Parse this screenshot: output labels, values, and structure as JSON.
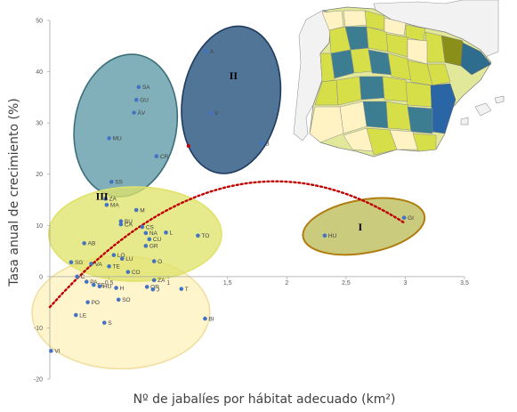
{
  "chart_data": {
    "type": "scatter",
    "xlabel": "Nº de jabalíes por hábitat adecuado (km²)",
    "ylabel": "Tasa anual de crecimiento (%)",
    "xlim": [
      0,
      3.5
    ],
    "ylim": [
      -20,
      50
    ],
    "x_ticks": [
      "0,5",
      "1",
      "1,5",
      "2",
      "2,5",
      "3",
      "3,5"
    ],
    "x_tick_values": [
      0.5,
      1,
      1.5,
      2,
      2.5,
      3,
      3.5
    ],
    "y_ticks": [
      "-20",
      "-10",
      "0",
      "10",
      "20",
      "30",
      "40",
      "50"
    ],
    "y_tick_values": [
      -20,
      -10,
      0,
      10,
      20,
      30,
      40,
      50
    ],
    "grid": false,
    "points": [
      {
        "label": "A",
        "x": 1.32,
        "y": 44.0
      },
      {
        "label": "V",
        "x": 1.36,
        "y": 32.0
      },
      {
        "label": "B",
        "x": 1.79,
        "y": 26.0
      },
      {
        "label": "SA",
        "x": 0.75,
        "y": 37.0
      },
      {
        "label": "GU",
        "x": 0.73,
        "y": 34.5
      },
      {
        "label": "ÁV",
        "x": 0.71,
        "y": 32.0
      },
      {
        "label": "MU",
        "x": 0.5,
        "y": 27.0
      },
      {
        "label": "CR",
        "x": 0.9,
        "y": 23.5
      },
      {
        "label": "SS",
        "x": 0.52,
        "y": 18.5
      },
      {
        "label": "ZA",
        "x": 0.47,
        "y": 15.2
      },
      {
        "label": "MA",
        "x": 0.48,
        "y": 14.0
      },
      {
        "label": "M",
        "x": 0.73,
        "y": 13.0
      },
      {
        "label": "BU",
        "x": 0.6,
        "y": 10.8
      },
      {
        "label": "CA",
        "x": 0.6,
        "y": 10.2
      },
      {
        "label": "CS",
        "x": 0.78,
        "y": 9.7
      },
      {
        "label": "NA",
        "x": 0.81,
        "y": 8.5
      },
      {
        "label": "L",
        "x": 0.98,
        "y": 8.6
      },
      {
        "label": "TO",
        "x": 1.25,
        "y": 8.0
      },
      {
        "label": "CU",
        "x": 0.84,
        "y": 7.3
      },
      {
        "label": "GR",
        "x": 0.81,
        "y": 6.0
      },
      {
        "label": "AB",
        "x": 0.29,
        "y": 6.5
      },
      {
        "label": "LO",
        "x": 0.54,
        "y": 4.2
      },
      {
        "label": "LU",
        "x": 0.61,
        "y": 3.5
      },
      {
        "label": "O",
        "x": 0.88,
        "y": 3.0
      },
      {
        "label": "SG",
        "x": 0.18,
        "y": 2.8
      },
      {
        "label": "VA",
        "x": 0.35,
        "y": 2.5
      },
      {
        "label": "TE",
        "x": 0.5,
        "y": 2.0
      },
      {
        "label": "CO",
        "x": 0.66,
        "y": 0.9
      },
      {
        "label": "C",
        "x": 0.23,
        "y": 0.0
      },
      {
        "label": "PA",
        "x": 0.31,
        "y": -1.0
      },
      {
        "label": "ZA",
        "x": 0.88,
        "y": -0.7
      },
      {
        "label": "SE",
        "x": 0.37,
        "y": -1.6
      },
      {
        "label": "HU",
        "x": 0.42,
        "y": -1.9
      },
      {
        "label": "H",
        "x": 0.56,
        "y": -2.2
      },
      {
        "label": "OR",
        "x": 0.82,
        "y": -2.0
      },
      {
        "label": "J",
        "x": 0.87,
        "y": -2.5
      },
      {
        "label": "T",
        "x": 1.11,
        "y": -2.4
      },
      {
        "label": "PO",
        "x": 0.32,
        "y": -5.0
      },
      {
        "label": "SO",
        "x": 0.58,
        "y": -4.5
      },
      {
        "label": "LE",
        "x": 0.22,
        "y": -7.5
      },
      {
        "label": "S",
        "x": 0.46,
        "y": -9.0
      },
      {
        "label": "BI",
        "x": 1.31,
        "y": -8.2
      },
      {
        "label": "VI",
        "x": 0.01,
        "y": -14.5
      },
      {
        "label": "HU",
        "x": 2.32,
        "y": 8.0
      },
      {
        "label": "GI",
        "x": 2.99,
        "y": 11.5
      }
    ],
    "extra_points": [
      {
        "x": 1.17,
        "y": 25.5,
        "color": "#c00000"
      }
    ],
    "groups": [
      {
        "label": "I",
        "label_x": 2.62,
        "label_y": 9.0,
        "cx": 2.65,
        "cy": 9.8,
        "rx": 0.52,
        "ry": 5.2,
        "rot": -10,
        "fill": "#bdbd5a",
        "stroke": "#b07d10"
      },
      {
        "label": "II",
        "label_x": 1.55,
        "label_y": 38.5,
        "cx": 1.53,
        "cy": 34.5,
        "rx": 0.41,
        "ry": 14.5,
        "rot": 10,
        "fill": "#1f4e79",
        "stroke": "#1f3a5f"
      },
      {
        "label": "III",
        "label_x": 0.44,
        "label_y": 15.0,
        "cx": 0.72,
        "cy": 8.3,
        "rx": 0.73,
        "ry": 9.2,
        "rot": 0,
        "fill": "#dfe36b",
        "stroke": "#dfe36b"
      },
      {
        "label": "",
        "cx": 0.64,
        "cy": 29.5,
        "rx": 0.43,
        "ry": 14.0,
        "rot": 10,
        "fill": "#5f9aa6",
        "stroke": "#3a6f7a"
      },
      {
        "label": "",
        "cx": 0.6,
        "cy": -7.0,
        "rx": 0.75,
        "ry": 11.0,
        "rot": 0,
        "fill": "#fff3c4",
        "stroke": "#f0dfa0"
      }
    ],
    "trend_curve": {
      "color": "#c00000",
      "style": "dotted",
      "from_x": 0.0,
      "to_x": 3.0
    },
    "inset": "map of Spain provinces colored by cluster"
  },
  "colors": {
    "point": "#4472c4",
    "trend": "#c00000",
    "axis": "#a6a6a6"
  }
}
